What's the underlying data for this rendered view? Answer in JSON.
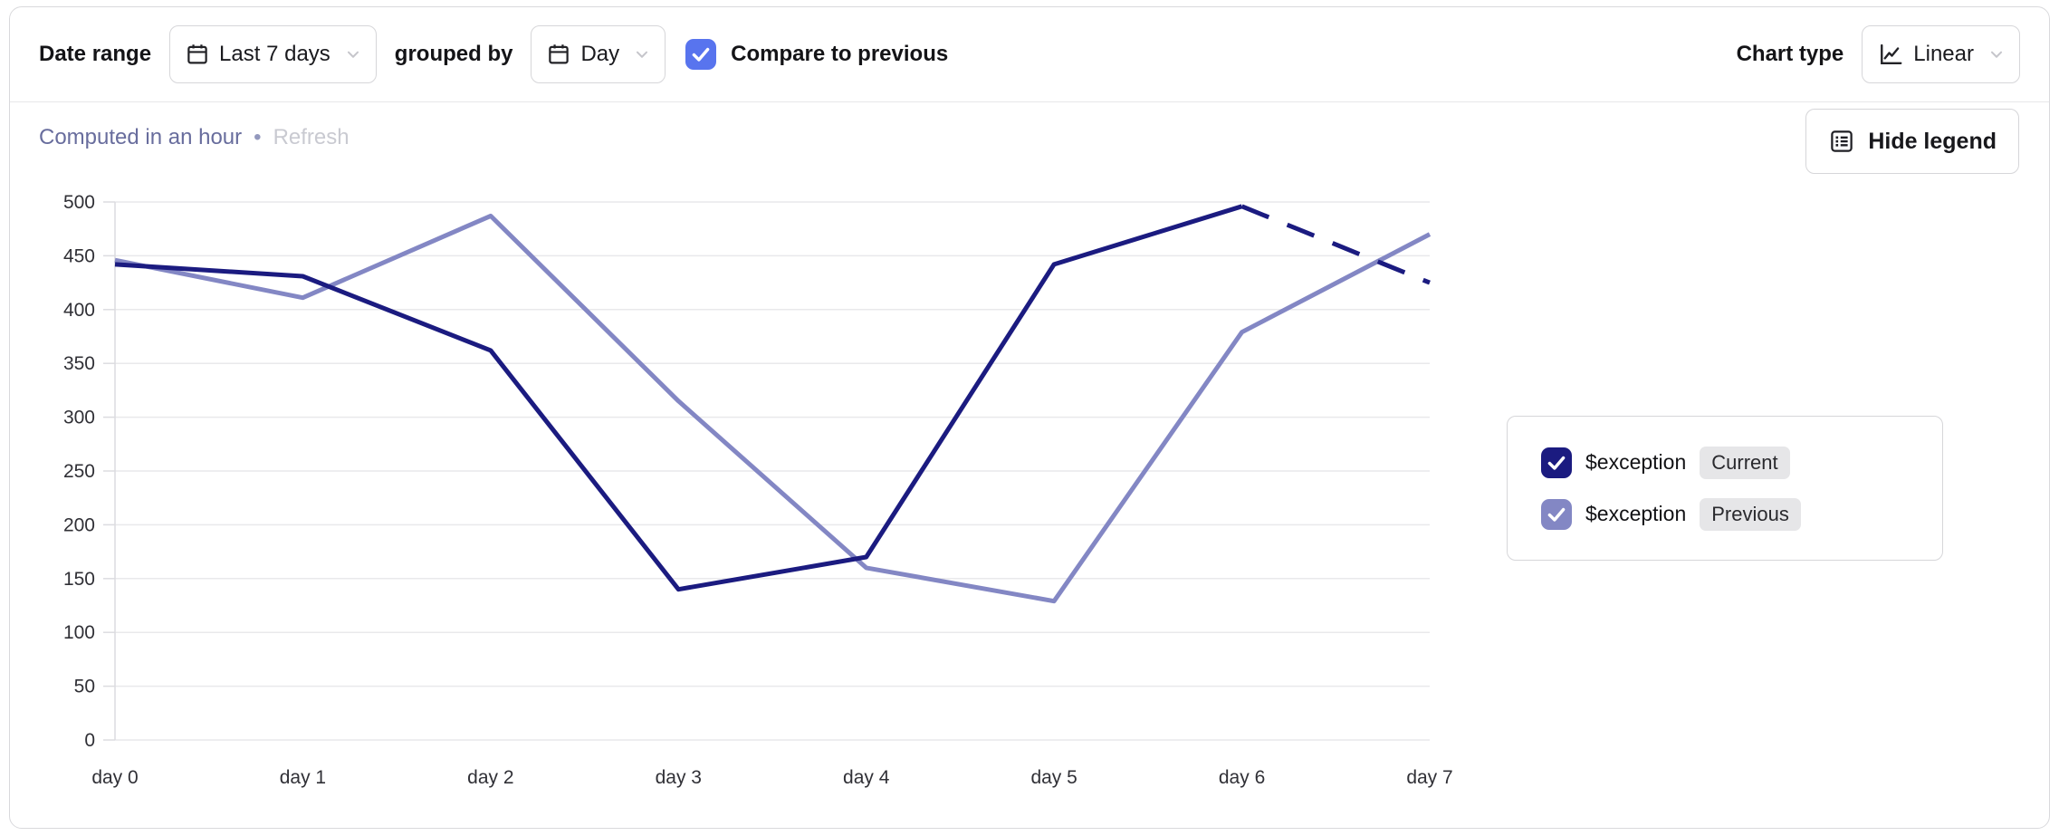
{
  "toolbar": {
    "date_range_label": "Date range",
    "date_range_value": "Last 7 days",
    "grouped_by_label": "grouped by",
    "group_value": "Day",
    "compare": {
      "checked": true,
      "label": "Compare to previous",
      "color": "#5874ee"
    },
    "chart_type_label": "Chart type",
    "chart_type_value": "Linear"
  },
  "status": {
    "computed_text": "Computed in an hour",
    "separator": "•",
    "refresh_label": "Refresh"
  },
  "hide_legend_button": "Hide legend",
  "legend": {
    "items": [
      {
        "series": "$exception",
        "badge": "Current",
        "checked": true,
        "color": "#1b1b80"
      },
      {
        "series": "$exception",
        "badge": "Previous",
        "checked": true,
        "color": "#8387c4"
      }
    ]
  },
  "chart_data": {
    "type": "line",
    "title": "",
    "xlabel": "",
    "ylabel": "",
    "categories": [
      "day 0",
      "day 1",
      "day 2",
      "day 3",
      "day 4",
      "day 5",
      "day 6",
      "day 7"
    ],
    "series": [
      {
        "name": "$exception (Current)",
        "color": "#1b1b80",
        "values": [
          442,
          431,
          362,
          140,
          170,
          442,
          496,
          425
        ],
        "dashed_from": 6
      },
      {
        "name": "$exception (Previous)",
        "color": "#8387c4",
        "values": [
          446,
          411,
          487,
          315,
          160,
          129,
          379,
          470
        ],
        "dashed_from": null
      }
    ],
    "ylim": [
      0,
      500
    ],
    "ytick_step": 50,
    "grid": "horizontal",
    "legend_position": "right",
    "note": "last segment of Current series is dashed (incomplete period)"
  }
}
